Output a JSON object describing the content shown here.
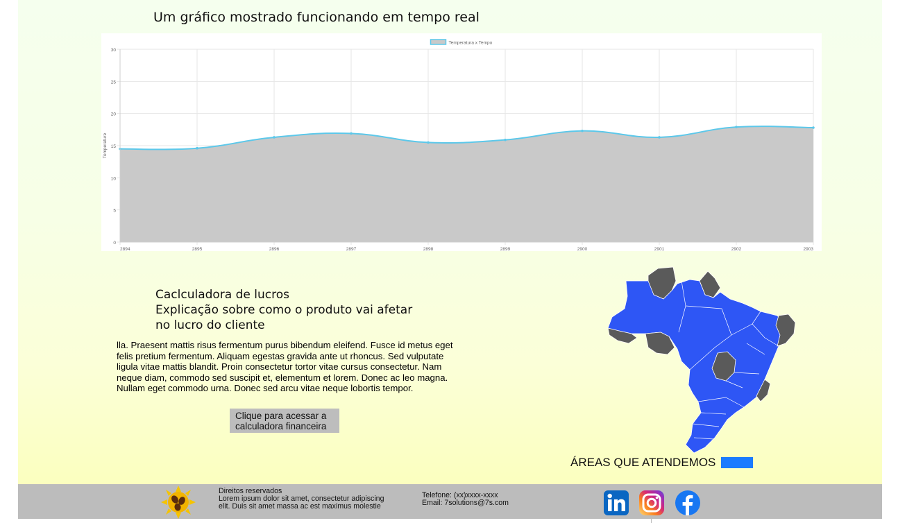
{
  "chart_section": {
    "heading": "Um gráfico mostrado funcionando em tempo real"
  },
  "chart_data": {
    "type": "area",
    "title": "",
    "legend_label": "Temperatura x Tempo",
    "legend_placement": "top-center",
    "xlabel": "",
    "ylabel": "Temperature",
    "x": [
      2894,
      2895,
      2896,
      2897,
      2898,
      2899,
      2900,
      2901,
      2902,
      2903
    ],
    "x_tick_labels": [
      "2894",
      "2895",
      "2896",
      "2897",
      "2898",
      "2899",
      "2900",
      "2901",
      "2902",
      "2903"
    ],
    "series": [
      {
        "name": "Temperatura x Tempo",
        "values": [
          14.5,
          14.6,
          16.3,
          16.9,
          15.5,
          15.9,
          17.3,
          16.3,
          17.9,
          17.8
        ]
      }
    ],
    "ylim": [
      0,
      30
    ],
    "y_ticks": [
      0,
      5,
      10,
      15,
      20,
      25,
      30
    ],
    "grid": true,
    "colors": {
      "line": "#5cc8ea",
      "fill": "#c9c9c9",
      "grid": "#e6e6e6"
    }
  },
  "calculator": {
    "title": "Caclculadora de lucros",
    "subtitle": "Explicação sobre como o produto vai afetar no lucro do cliente",
    "body": "lla. Praesent mattis risus fermentum purus bibendum eleifend. Fusce id metus eget felis pretium fermentum. Aliquam egestas gravida ante ut rhoncus. Sed vulputate ligula vitae mattis blandit. Proin consectetur tortor vitae cursus consectetur. Nam neque diam, commodo sed suscipit et, elementum et lorem. Donec ac leo magna. Nullam eget commodo urna. Donec sed arcu vitae neque lobortis tempor.",
    "button_label": "Clique para acessar a calculadora financeira"
  },
  "map_section": {
    "caption": "ÁREAS QUE ATENDEMOS",
    "colors": {
      "served": "#2e56f5",
      "not_served": "#5a5a5a",
      "legend_swatch": "#1a7bff"
    }
  },
  "footer": {
    "rights_title": "Direitos reservados",
    "rights_text": "Lorem ipsum dolor sit amet, consectetur adipiscing elit. Duis sit amet massa ac est maximus molestie",
    "phone": "Telefone: (xx)xxxx-xxxx",
    "email": "Email: 7solutions@7s.com",
    "social": [
      {
        "icon": "linkedin-icon",
        "color": "#0a66c2"
      },
      {
        "icon": "instagram-icon",
        "color": "#d6249f"
      },
      {
        "icon": "facebook-icon",
        "color": "#1877f2"
      }
    ]
  }
}
